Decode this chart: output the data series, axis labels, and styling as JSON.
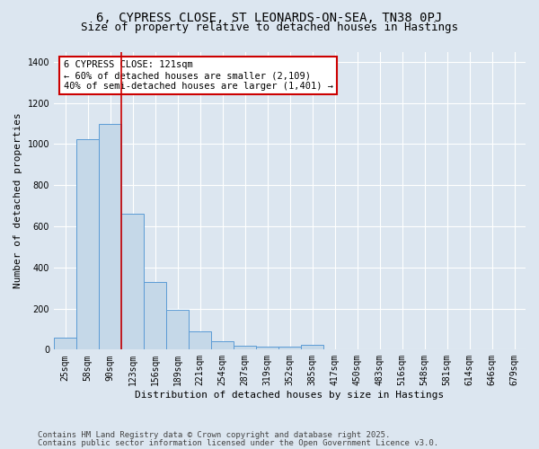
{
  "title_line1": "6, CYPRESS CLOSE, ST LEONARDS-ON-SEA, TN38 0PJ",
  "title_line2": "Size of property relative to detached houses in Hastings",
  "xlabel": "Distribution of detached houses by size in Hastings",
  "ylabel": "Number of detached properties",
  "categories": [
    "25sqm",
    "58sqm",
    "90sqm",
    "123sqm",
    "156sqm",
    "189sqm",
    "221sqm",
    "254sqm",
    "287sqm",
    "319sqm",
    "352sqm",
    "385sqm",
    "417sqm",
    "450sqm",
    "483sqm",
    "516sqm",
    "548sqm",
    "581sqm",
    "614sqm",
    "646sqm",
    "679sqm"
  ],
  "values": [
    58,
    1025,
    1100,
    660,
    328,
    195,
    90,
    40,
    18,
    13,
    13,
    25,
    0,
    0,
    0,
    0,
    0,
    0,
    0,
    0,
    0
  ],
  "bar_color": "#c5d8e8",
  "bar_edge_color": "#5b9bd5",
  "vline_x": 2.5,
  "vline_color": "#cc0000",
  "annotation_text": "6 CYPRESS CLOSE: 121sqm\n← 60% of detached houses are smaller (2,109)\n40% of semi-detached houses are larger (1,401) →",
  "annotation_box_facecolor": "white",
  "annotation_box_edgecolor": "#cc0000",
  "ylim": [
    0,
    1450
  ],
  "yticks": [
    0,
    200,
    400,
    600,
    800,
    1000,
    1200,
    1400
  ],
  "bg_color": "#dce6f0",
  "plot_bg_color": "#dce6f0",
  "footer_line1": "Contains HM Land Registry data © Crown copyright and database right 2025.",
  "footer_line2": "Contains public sector information licensed under the Open Government Licence v3.0.",
  "title_fontsize": 10,
  "subtitle_fontsize": 9,
  "axis_label_fontsize": 8,
  "tick_fontsize": 7,
  "annotation_fontsize": 7.5,
  "footer_fontsize": 6.5
}
